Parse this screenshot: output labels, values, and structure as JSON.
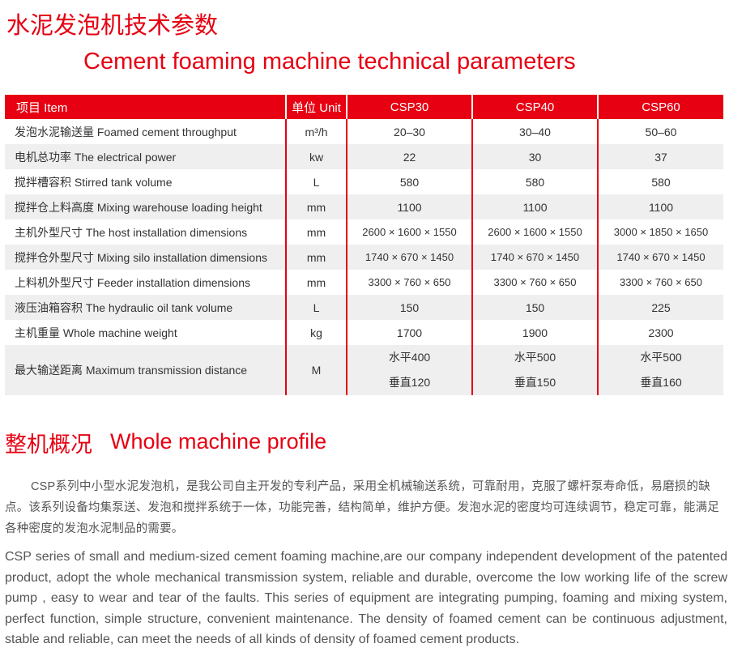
{
  "title_cn": "水泥发泡机技术参数",
  "title_en": "Cement foaming machine technical parameters",
  "colors": {
    "accent": "#e60012",
    "row_alt": "#efefef"
  },
  "table": {
    "headers": [
      "项目  Item",
      "单位 Unit",
      "CSP30",
      "CSP40",
      "CSP60"
    ],
    "rows": [
      {
        "item": "发泡水泥输送量 Foamed cement throughput",
        "unit": "m³/h",
        "v": [
          "20–30",
          "30–40",
          "50–60"
        ]
      },
      {
        "item": "电机总功率 The electrical power",
        "unit": "kw",
        "v": [
          "22",
          "30",
          "37"
        ]
      },
      {
        "item": "搅拌槽容积 Stirred tank volume",
        "unit": "L",
        "v": [
          "580",
          "580",
          "580"
        ]
      },
      {
        "item": "搅拌仓上料高度 Mixing warehouse loading height",
        "unit": "mm",
        "v": [
          "1100",
          "1100",
          "1100"
        ]
      },
      {
        "item": "主机外型尺寸 The host installation dimensions",
        "unit": "mm",
        "v": [
          "2600 × 1600 × 1550",
          "2600 × 1600 × 1550",
          "3000 × 1850 × 1650"
        ]
      },
      {
        "item": "搅拌仓外型尺寸 Mixing silo installation dimensions",
        "unit": "mm",
        "v": [
          "1740 × 670 × 1450",
          "1740 × 670 × 1450",
          "1740 × 670 × 1450"
        ]
      },
      {
        "item": "上料机外型尺寸 Feeder installation dimensions",
        "unit": "mm",
        "v": [
          "3300 × 760 × 650",
          "3300 × 760 × 650",
          "3300 × 760 × 650"
        ]
      },
      {
        "item": "液压油箱容积 The hydraulic oil tank volume",
        "unit": "L",
        "v": [
          "150",
          "150",
          "225"
        ]
      },
      {
        "item": "主机重量 Whole machine weight",
        "unit": "kg",
        "v": [
          "1700",
          "1900",
          "2300"
        ]
      },
      {
        "item": "最大输送距离 Maximum transmission distance",
        "unit": "M",
        "v": [
          [
            "水平400",
            "垂直120"
          ],
          [
            "水平500",
            "垂直150"
          ],
          [
            "水平500",
            "垂直160"
          ]
        ]
      }
    ]
  },
  "profile": {
    "title_cn": "整机概况",
    "title_en": "Whole machine profile",
    "para_cn": "CSP系列中小型水泥发泡机，是我公司自主开发的专利产品，采用全机械输送系统，可靠耐用，克服了螺杆泵寿命低，易磨损的缺点。该系列设备均集泵送、发泡和搅拌系统于一体，功能完善，结构简单，维护方便。发泡水泥的密度均可连续调节，稳定可靠，能满足各种密度的发泡水泥制品的需要。",
    "para_en": "CSP series of small and medium-sized cement foaming machine,are our company independent development of the patented product, adopt the whole mechanical transmission system, reliable and durable, overcome the low working life of the screw pump , easy to wear and tear of the faults. This series of equipment are integrating pumping, foaming and mixing system, perfect function, simple structure, convenient maintenance. The density of foamed cement can be continuous adjustment, stable and reliable, can meet the needs of all kinds of density of foamed cement products."
  }
}
